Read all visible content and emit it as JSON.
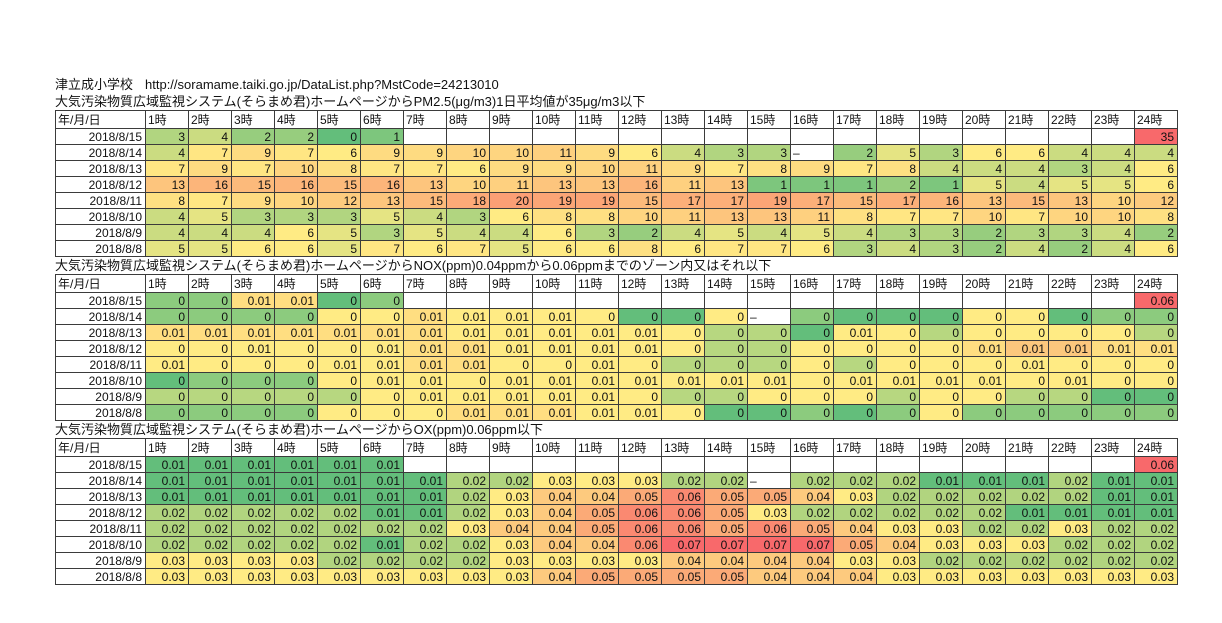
{
  "header": {
    "station_name": "津立成小学校",
    "url": "http://soramame.taiki.go.jp/DataList.php?MstCode=24213010"
  },
  "grid": {
    "date_header": "年/月/日",
    "hours": [
      "1時",
      "2時",
      "3時",
      "4時",
      "5時",
      "6時",
      "7時",
      "8時",
      "9時",
      "10時",
      "11時",
      "12時",
      "13時",
      "14時",
      "15時",
      "16時",
      "17時",
      "18時",
      "19時",
      "20時",
      "21時",
      "22時",
      "23時",
      "24時"
    ]
  },
  "palette": {
    "A": "#63BE7B",
    "B": "#7DC67D",
    "C": "#97CD7E",
    "D": "#B1D580",
    "E": "#CBDC81",
    "F": "#E5E483",
    "G": "#FFEB84",
    "H": "#FFE683",
    "I": "#FEE082",
    "J": "#FEDB81",
    "K": "#FED580",
    "L": "#FED07F",
    "M": "#FDCB7E",
    "N": "#FDC57D",
    "O": "#FCBA7B",
    "P": "#FCB57A",
    "Q": "#FCAF79",
    "R": "#FCAA78",
    "S": "#FBA576",
    "T": "#FB9F75",
    "U": "#F8696B",
    "V": "#8CCB7E",
    "W": "#B7D780",
    "X": "#FFDE81",
    "Y": "#FCC77D",
    "Z": "#B1D47F",
    "c": "#FDCA7E",
    "d": "#FBAA77",
    "e": "#FA8971",
    "w": "#FFFFFF"
  },
  "tables": [
    {
      "id": "pm25",
      "title": "大気汚染物質広域監視システム(そらまめ君)ホームページからPM2.5(μg/m3)1日平均値が35μg/m3以下",
      "rows": [
        {
          "date": "2018/8/15",
          "v": [
            "3",
            "4",
            "2",
            "2",
            "0",
            "1",
            "",
            "",
            "",
            "",
            "",
            "",
            "",
            "",
            "",
            "",
            "",
            "",
            "",
            "",
            "",
            "",
            "",
            "35"
          ],
          "c": "DECCABwwwwwwwwwwwwwwwwwU"
        },
        {
          "date": "2018/8/14",
          "v": [
            "4",
            "7",
            "9",
            "7",
            "6",
            "9",
            "9",
            "10",
            "10",
            "11",
            "9",
            "6",
            "4",
            "3",
            "3",
            "–",
            "2",
            "5",
            "3",
            "6",
            "6",
            "4",
            "4",
            "4"
          ],
          "c": "EHJHGJJKKLJGEDDwCFDGGEEE"
        },
        {
          "date": "2018/8/13",
          "v": [
            "7",
            "9",
            "7",
            "10",
            "8",
            "7",
            "7",
            "6",
            "9",
            "9",
            "10",
            "11",
            "9",
            "7",
            "8",
            "9",
            "7",
            "8",
            "4",
            "4",
            "4",
            "3",
            "4",
            "6"
          ],
          "c": "HJHKIHHGJJKLJHIJHIEEEDEG"
        },
        {
          "date": "2018/8/12",
          "v": [
            "13",
            "16",
            "15",
            "16",
            "15",
            "16",
            "13",
            "10",
            "11",
            "13",
            "13",
            "16",
            "11",
            "13",
            "1",
            "1",
            "1",
            "2",
            "1",
            "5",
            "4",
            "5",
            "5",
            "6"
          ],
          "c": "NPOPOPNKLNNPLNBBBCBFEFFG"
        },
        {
          "date": "2018/8/11",
          "v": [
            "8",
            "7",
            "9",
            "10",
            "12",
            "13",
            "15",
            "18",
            "20",
            "19",
            "19",
            "15",
            "17",
            "17",
            "19",
            "17",
            "15",
            "17",
            "16",
            "13",
            "15",
            "13",
            "10",
            "12"
          ],
          "c": "IHJKMNORTSSOQQSQOQPNONKM"
        },
        {
          "date": "2018/8/10",
          "v": [
            "4",
            "5",
            "3",
            "3",
            "3",
            "5",
            "4",
            "3",
            "6",
            "8",
            "8",
            "10",
            "11",
            "13",
            "13",
            "11",
            "8",
            "7",
            "7",
            "10",
            "7",
            "10",
            "10",
            "8"
          ],
          "c": "EFDDDFEDGIIKLNNLIHHKHKKI"
        },
        {
          "date": "2018/8/9",
          "v": [
            "4",
            "4",
            "4",
            "6",
            "5",
            "3",
            "5",
            "4",
            "4",
            "6",
            "3",
            "2",
            "4",
            "5",
            "4",
            "5",
            "4",
            "3",
            "3",
            "2",
            "3",
            "3",
            "4",
            "2"
          ],
          "c": "EEEGFDFEEGDCEFEFEDDCDDEC"
        },
        {
          "date": "2018/8/8",
          "v": [
            "5",
            "5",
            "6",
            "6",
            "5",
            "7",
            "6",
            "7",
            "5",
            "6",
            "6",
            "8",
            "6",
            "7",
            "7",
            "6",
            "3",
            "4",
            "3",
            "2",
            "4",
            "2",
            "4",
            "6"
          ],
          "c": "FFGGFHGHFGGIGHHGDEDCECEG"
        }
      ]
    },
    {
      "id": "nox",
      "title": "大気汚染物質広域監視システム(そらまめ君)ホームページからNOX(ppm)0.04ppmから0.06ppmまでのゾーン内又はそれ以下",
      "rows": [
        {
          "date": "2018/8/15",
          "v": [
            "0",
            "0",
            "0.01",
            "0.01",
            "0",
            "0",
            "",
            "",
            "",
            "",
            "",
            "",
            "",
            "",
            "",
            "",
            "",
            "",
            "",
            "",
            "",
            "",
            "",
            "0.06"
          ],
          "c": "VVXXAVwwwwwwwwwwwwwwwwwU"
        },
        {
          "date": "2018/8/14",
          "v": [
            "0",
            "0",
            "0",
            "0",
            "0",
            "0",
            "0.01",
            "0.01",
            "0.01",
            "0.01",
            "0",
            "0",
            "0",
            "0",
            "–",
            "0",
            "0",
            "0",
            "0",
            "0",
            "0",
            "0",
            "0",
            "0"
          ],
          "c": "VVVVGGXGGGGAAGwVAAAGGAVV"
        },
        {
          "date": "2018/8/13",
          "v": [
            "0.01",
            "0.01",
            "0.01",
            "0.01",
            "0.01",
            "0.01",
            "0.01",
            "0.01",
            "0.01",
            "0.01",
            "0.01",
            "0.01",
            "0",
            "0",
            "0",
            "0",
            "0.01",
            "0",
            "0",
            "0",
            "0",
            "0",
            "0",
            "0"
          ],
          "c": "XXXXXXXGGGGGGWWAGGWGGGGW"
        },
        {
          "date": "2018/8/12",
          "v": [
            "0",
            "0",
            "0.01",
            "0",
            "0",
            "0.01",
            "0.01",
            "0.01",
            "0.01",
            "0.01",
            "0.01",
            "0.01",
            "0",
            "0",
            "0",
            "0",
            "0",
            "0",
            "0",
            "0.01",
            "0.01",
            "0.01",
            "0.01",
            "0.01"
          ],
          "c": "GGGGGGXXGGGGGWWGGGGXYYXX"
        },
        {
          "date": "2018/8/11",
          "v": [
            "0.01",
            "0",
            "0",
            "0",
            "0.01",
            "0.01",
            "0.01",
            "0.01",
            "0",
            "0",
            "0.01",
            "0",
            "0",
            "0",
            "0",
            "0",
            "0",
            "0",
            "0",
            "0",
            "0.01",
            "0",
            "0",
            "0"
          ],
          "c": "GGGGGGXXGGGGWWWGWGGGGGGG"
        },
        {
          "date": "2018/8/10",
          "v": [
            "0",
            "0",
            "0",
            "0",
            "0",
            "0.01",
            "0.01",
            "0",
            "0.01",
            "0.01",
            "0.01",
            "0.01",
            "0.01",
            "0.01",
            "0.01",
            "0",
            "0.01",
            "0.01",
            "0.01",
            "0.01",
            "0",
            "0.01",
            "0",
            "0"
          ],
          "c": "AVVVGGGGGGGGGGGGGGGGGGGG"
        },
        {
          "date": "2018/8/9",
          "v": [
            "0",
            "0",
            "0",
            "0",
            "0",
            "0",
            "0.01",
            "0.01",
            "0.01",
            "0.01",
            "0.01",
            "0",
            "0",
            "0",
            "0",
            "0",
            "0",
            "0",
            "0",
            "0",
            "0",
            "0",
            "0",
            "0"
          ],
          "c": "WWWWWGGGGGGGWWGGGWGGWWAA"
        },
        {
          "date": "2018/8/8",
          "v": [
            "0",
            "0",
            "0",
            "0",
            "0",
            "0",
            "0",
            "0.01",
            "0.01",
            "0.01",
            "0.01",
            "0.01",
            "0",
            "0",
            "0",
            "0",
            "0",
            "0",
            "0",
            "0",
            "0",
            "0",
            "0",
            "0"
          ],
          "c": "VVVVGGGXXXGGGAAVAVGVVVVV"
        }
      ]
    },
    {
      "id": "ox",
      "title": "大気汚染物質広域監視システム(そらまめ君)ホームページからOX(ppm)0.06ppm以下",
      "rows": [
        {
          "date": "2018/8/15",
          "v": [
            "0.01",
            "0.01",
            "0.01",
            "0.01",
            "0.01",
            "0.01",
            "",
            "",
            "",
            "",
            "",
            "",
            "",
            "",
            "",
            "",
            "",
            "",
            "",
            "",
            "",
            "",
            "",
            "0.06"
          ],
          "c": "AAAAAAwwwwwwwwwwwwwwwwwU"
        },
        {
          "date": "2018/8/14",
          "v": [
            "0.01",
            "0.01",
            "0.01",
            "0.01",
            "0.01",
            "0.01",
            "0.01",
            "0.02",
            "0.02",
            "0.03",
            "0.03",
            "0.03",
            "0.02",
            "0.02",
            "–",
            "0.02",
            "0.02",
            "0.02",
            "0.01",
            "0.01",
            "0.01",
            "0.02",
            "0.01",
            "0.01"
          ],
          "c": "AAAAAAAZZGGGZZwZZZAAAZAA"
        },
        {
          "date": "2018/8/13",
          "v": [
            "0.01",
            "0.01",
            "0.01",
            "0.01",
            "0.01",
            "0.01",
            "0.01",
            "0.02",
            "0.03",
            "0.04",
            "0.04",
            "0.05",
            "0.06",
            "0.05",
            "0.05",
            "0.04",
            "0.03",
            "0.02",
            "0.02",
            "0.02",
            "0.02",
            "0.02",
            "0.01",
            "0.01"
          ],
          "c": "AAAAAAAZGccdeddcGZZZZZAA"
        },
        {
          "date": "2018/8/12",
          "v": [
            "0.02",
            "0.02",
            "0.02",
            "0.02",
            "0.02",
            "0.01",
            "0.01",
            "0.02",
            "0.03",
            "0.04",
            "0.05",
            "0.06",
            "0.06",
            "0.05",
            "0.03",
            "0.02",
            "0.02",
            "0.02",
            "0.02",
            "0.02",
            "0.01",
            "0.01",
            "0.01",
            "0.01"
          ],
          "c": "ZZZZZAAZGcdeedGZZZZZAAAA"
        },
        {
          "date": "2018/8/11",
          "v": [
            "0.02",
            "0.02",
            "0.02",
            "0.02",
            "0.02",
            "0.02",
            "0.02",
            "0.03",
            "0.04",
            "0.04",
            "0.05",
            "0.06",
            "0.06",
            "0.05",
            "0.06",
            "0.05",
            "0.04",
            "0.03",
            "0.03",
            "0.02",
            "0.02",
            "0.03",
            "0.02",
            "0.02"
          ],
          "c": "ZZZZZZZGccdeededcGGZZGZZ"
        },
        {
          "date": "2018/8/10",
          "v": [
            "0.02",
            "0.02",
            "0.02",
            "0.02",
            "0.02",
            "0.01",
            "0.02",
            "0.02",
            "0.03",
            "0.04",
            "0.04",
            "0.06",
            "0.07",
            "0.07",
            "0.07",
            "0.07",
            "0.05",
            "0.04",
            "0.03",
            "0.03",
            "0.03",
            "0.02",
            "0.02",
            "0.02"
          ],
          "c": "ZZZZZAZZGcceUUUUdcGGGZZZ"
        },
        {
          "date": "2018/8/9",
          "v": [
            "0.03",
            "0.03",
            "0.03",
            "0.03",
            "0.02",
            "0.02",
            "0.02",
            "0.02",
            "0.03",
            "0.03",
            "0.03",
            "0.03",
            "0.04",
            "0.04",
            "0.04",
            "0.04",
            "0.03",
            "0.03",
            "0.02",
            "0.02",
            "0.02",
            "0.02",
            "0.02",
            "0.02"
          ],
          "c": "GGGGZZZZGGGGccccGGZZZZZZ"
        },
        {
          "date": "2018/8/8",
          "v": [
            "0.03",
            "0.03",
            "0.03",
            "0.03",
            "0.03",
            "0.03",
            "0.03",
            "0.03",
            "0.03",
            "0.04",
            "0.05",
            "0.05",
            "0.05",
            "0.05",
            "0.04",
            "0.04",
            "0.04",
            "0.03",
            "0.03",
            "0.03",
            "0.03",
            "0.03",
            "0.03",
            "0.03"
          ],
          "c": "GGGGGGGGGcddddcccGGGGGGG"
        }
      ]
    }
  ]
}
